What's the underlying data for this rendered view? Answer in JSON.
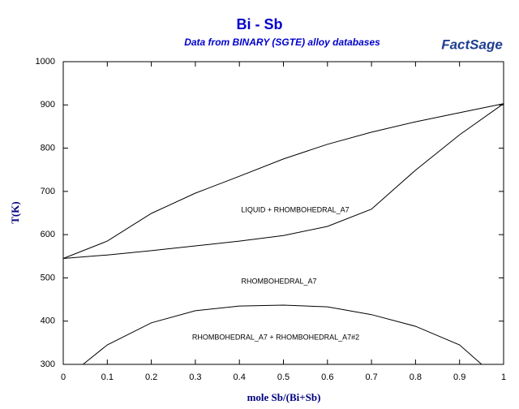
{
  "chart_data": {
    "type": "line",
    "title": "Bi - Sb",
    "subtitle": "Data from BINARY (SGTE) alloy databases",
    "logo": "FactSage",
    "x_label": "mole Sb/(Bi+Sb)",
    "y_label": "T(K)",
    "xlim": [
      0,
      1
    ],
    "ylim": [
      300,
      1000
    ],
    "xticks": [
      0,
      0.1,
      0.2,
      0.3,
      0.4,
      0.5,
      0.6,
      0.7,
      0.8,
      0.9,
      1
    ],
    "yticks": [
      300,
      400,
      500,
      600,
      700,
      800,
      900,
      1000
    ],
    "series": [
      {
        "color": "#000000",
        "x": [
          0,
          0.1,
          0.2,
          0.3,
          0.4,
          0.5,
          0.6,
          0.7,
          0.8,
          0.9,
          1
        ],
        "values": [
          545,
          585,
          649,
          696,
          735,
          775,
          809,
          837,
          861,
          882,
          903
        ]
      },
      {
        "color": "#000000",
        "x": [
          0,
          0.1,
          0.2,
          0.3,
          0.4,
          0.5,
          0.6,
          0.7,
          0.8,
          0.9,
          1
        ],
        "values": [
          545,
          553,
          563,
          574,
          585,
          598,
          619,
          659,
          749,
          831,
          903
        ]
      },
      {
        "color": "#000000",
        "x": [
          0.045,
          0.1,
          0.2,
          0.3,
          0.4,
          0.5,
          0.6,
          0.7,
          0.8,
          0.9,
          0.95
        ],
        "values": [
          300,
          345,
          396,
          424,
          435,
          437,
          433,
          415,
          388,
          345,
          300
        ]
      }
    ],
    "annotations": [
      "LIQUID + RHOMBOHEDRAL_A7",
      "RHOMBOHEDRAL_A7",
      "RHOMBOHEDRAL_A7 + RHOMBOHEDRAL_A7#2"
    ]
  }
}
